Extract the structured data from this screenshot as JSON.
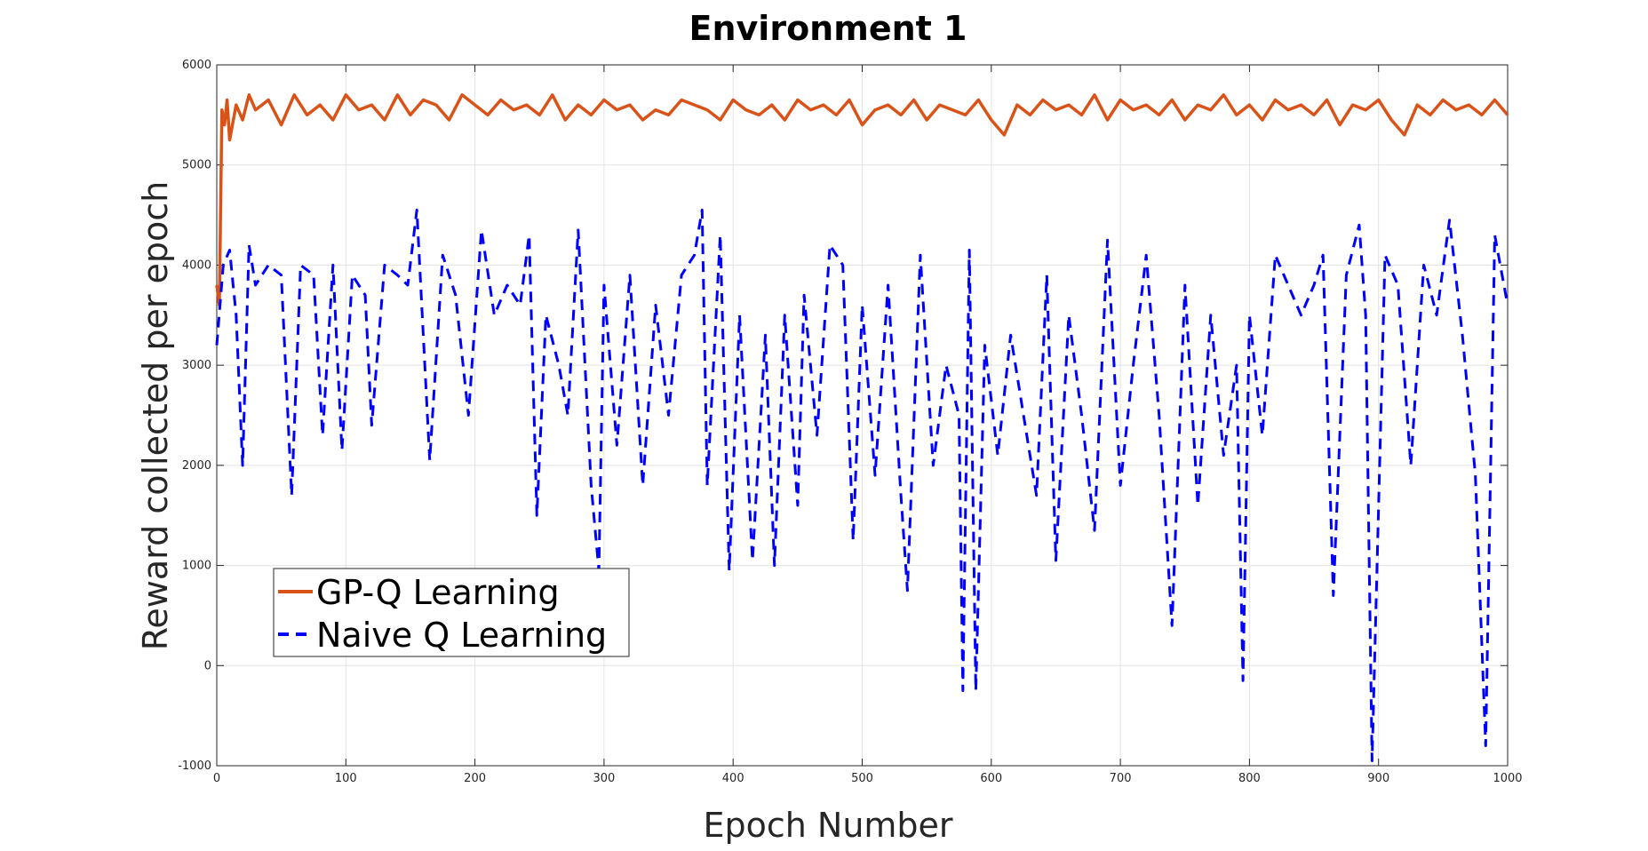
{
  "chart_data": {
    "type": "line",
    "title": "Environment 1",
    "xlabel": "Epoch Number",
    "ylabel": "Reward collected per epoch",
    "xlim": [
      0,
      1000
    ],
    "ylim": [
      -1000,
      6000
    ],
    "xticks": [
      0,
      100,
      200,
      300,
      400,
      500,
      600,
      700,
      800,
      900,
      1000
    ],
    "yticks": [
      -1000,
      0,
      1000,
      2000,
      3000,
      4000,
      5000,
      6000
    ],
    "grid": true,
    "legend_position": "lower-left",
    "series": [
      {
        "name": "GP-Q Learning",
        "color": "#d95319",
        "style": "solid",
        "x": [
          0,
          2,
          4,
          6,
          8,
          10,
          15,
          20,
          25,
          30,
          40,
          50,
          60,
          70,
          80,
          90,
          100,
          110,
          120,
          130,
          140,
          150,
          160,
          170,
          180,
          190,
          200,
          210,
          220,
          230,
          240,
          250,
          260,
          270,
          280,
          290,
          300,
          310,
          320,
          330,
          340,
          350,
          360,
          370,
          380,
          390,
          400,
          410,
          420,
          430,
          440,
          450,
          460,
          470,
          480,
          490,
          500,
          510,
          520,
          530,
          540,
          550,
          560,
          570,
          580,
          590,
          600,
          610,
          620,
          630,
          640,
          650,
          660,
          670,
          680,
          690,
          700,
          710,
          720,
          730,
          740,
          750,
          760,
          770,
          780,
          790,
          800,
          810,
          820,
          830,
          840,
          850,
          860,
          870,
          880,
          890,
          900,
          910,
          920,
          930,
          940,
          950,
          960,
          970,
          980,
          990,
          1000
        ],
        "y": [
          3800,
          3600,
          5550,
          5400,
          5650,
          5250,
          5600,
          5450,
          5700,
          5550,
          5650,
          5400,
          5700,
          5500,
          5600,
          5450,
          5700,
          5550,
          5600,
          5450,
          5700,
          5500,
          5650,
          5600,
          5450,
          5700,
          5600,
          5500,
          5650,
          5550,
          5600,
          5500,
          5700,
          5450,
          5600,
          5500,
          5650,
          5550,
          5600,
          5450,
          5550,
          5500,
          5650,
          5600,
          5550,
          5450,
          5650,
          5550,
          5500,
          5600,
          5450,
          5650,
          5550,
          5600,
          5500,
          5650,
          5400,
          5550,
          5600,
          5500,
          5650,
          5450,
          5600,
          5550,
          5500,
          5650,
          5450,
          5300,
          5600,
          5500,
          5650,
          5550,
          5600,
          5500,
          5700,
          5450,
          5650,
          5550,
          5600,
          5500,
          5650,
          5450,
          5600,
          5550,
          5700,
          5500,
          5600,
          5450,
          5650,
          5550,
          5600,
          5500,
          5650,
          5400,
          5600,
          5550,
          5650,
          5450,
          5300,
          5600,
          5500,
          5650,
          5550,
          5600,
          5500,
          5650,
          5500
        ]
      },
      {
        "name": "Naive Q Learning",
        "color": "#0000ff",
        "style": "dashed",
        "x": [
          0,
          5,
          10,
          15,
          20,
          25,
          30,
          40,
          50,
          58,
          65,
          75,
          82,
          90,
          97,
          105,
          115,
          120,
          130,
          140,
          148,
          155,
          165,
          175,
          185,
          195,
          205,
          215,
          225,
          235,
          242,
          248,
          255,
          265,
          272,
          280,
          290,
          296,
          300,
          310,
          320,
          330,
          340,
          350,
          360,
          370,
          376,
          380,
          390,
          397,
          405,
          415,
          425,
          432,
          440,
          450,
          455,
          465,
          475,
          485,
          493,
          500,
          510,
          520,
          530,
          535,
          545,
          555,
          565,
          575,
          578,
          583,
          588,
          595,
          605,
          615,
          625,
          635,
          643,
          650,
          660,
          670,
          680,
          690,
          700,
          710,
          720,
          730,
          740,
          750,
          760,
          770,
          780,
          790,
          795,
          800,
          810,
          820,
          830,
          840,
          850,
          857,
          865,
          875,
          885,
          890,
          895,
          905,
          915,
          925,
          935,
          945,
          955,
          965,
          975,
          983,
          990,
          1000
        ],
        "y": [
          3200,
          4000,
          4150,
          3500,
          2000,
          4200,
          3800,
          4000,
          3900,
          1700,
          4000,
          3900,
          2300,
          4000,
          2150,
          3900,
          3700,
          2400,
          4000,
          3900,
          3800,
          4550,
          2050,
          4100,
          3700,
          2500,
          4350,
          3500,
          3800,
          3600,
          4300,
          1500,
          3500,
          3000,
          2500,
          4350,
          1800,
          950,
          3800,
          2200,
          3900,
          1800,
          3600,
          2500,
          3900,
          4100,
          4550,
          1800,
          4300,
          950,
          3500,
          1050,
          3300,
          1000,
          3500,
          1600,
          3700,
          2300,
          4200,
          4000,
          1250,
          3600,
          1900,
          3800,
          1700,
          750,
          4100,
          2000,
          3000,
          2500,
          -250,
          4150,
          -250,
          3200,
          2100,
          3300,
          2500,
          1700,
          3900,
          1050,
          3500,
          2500,
          1350,
          4250,
          1800,
          3000,
          4100,
          2500,
          400,
          3800,
          1600,
          3500,
          2100,
          3000,
          -150,
          3500,
          2300,
          4100,
          3800,
          3500,
          3800,
          4100,
          700,
          3900,
          4400,
          3500,
          -950,
          4100,
          3800,
          2000,
          4000,
          3500,
          4450,
          3300,
          1900,
          -800,
          4300,
          3600
        ]
      }
    ]
  }
}
